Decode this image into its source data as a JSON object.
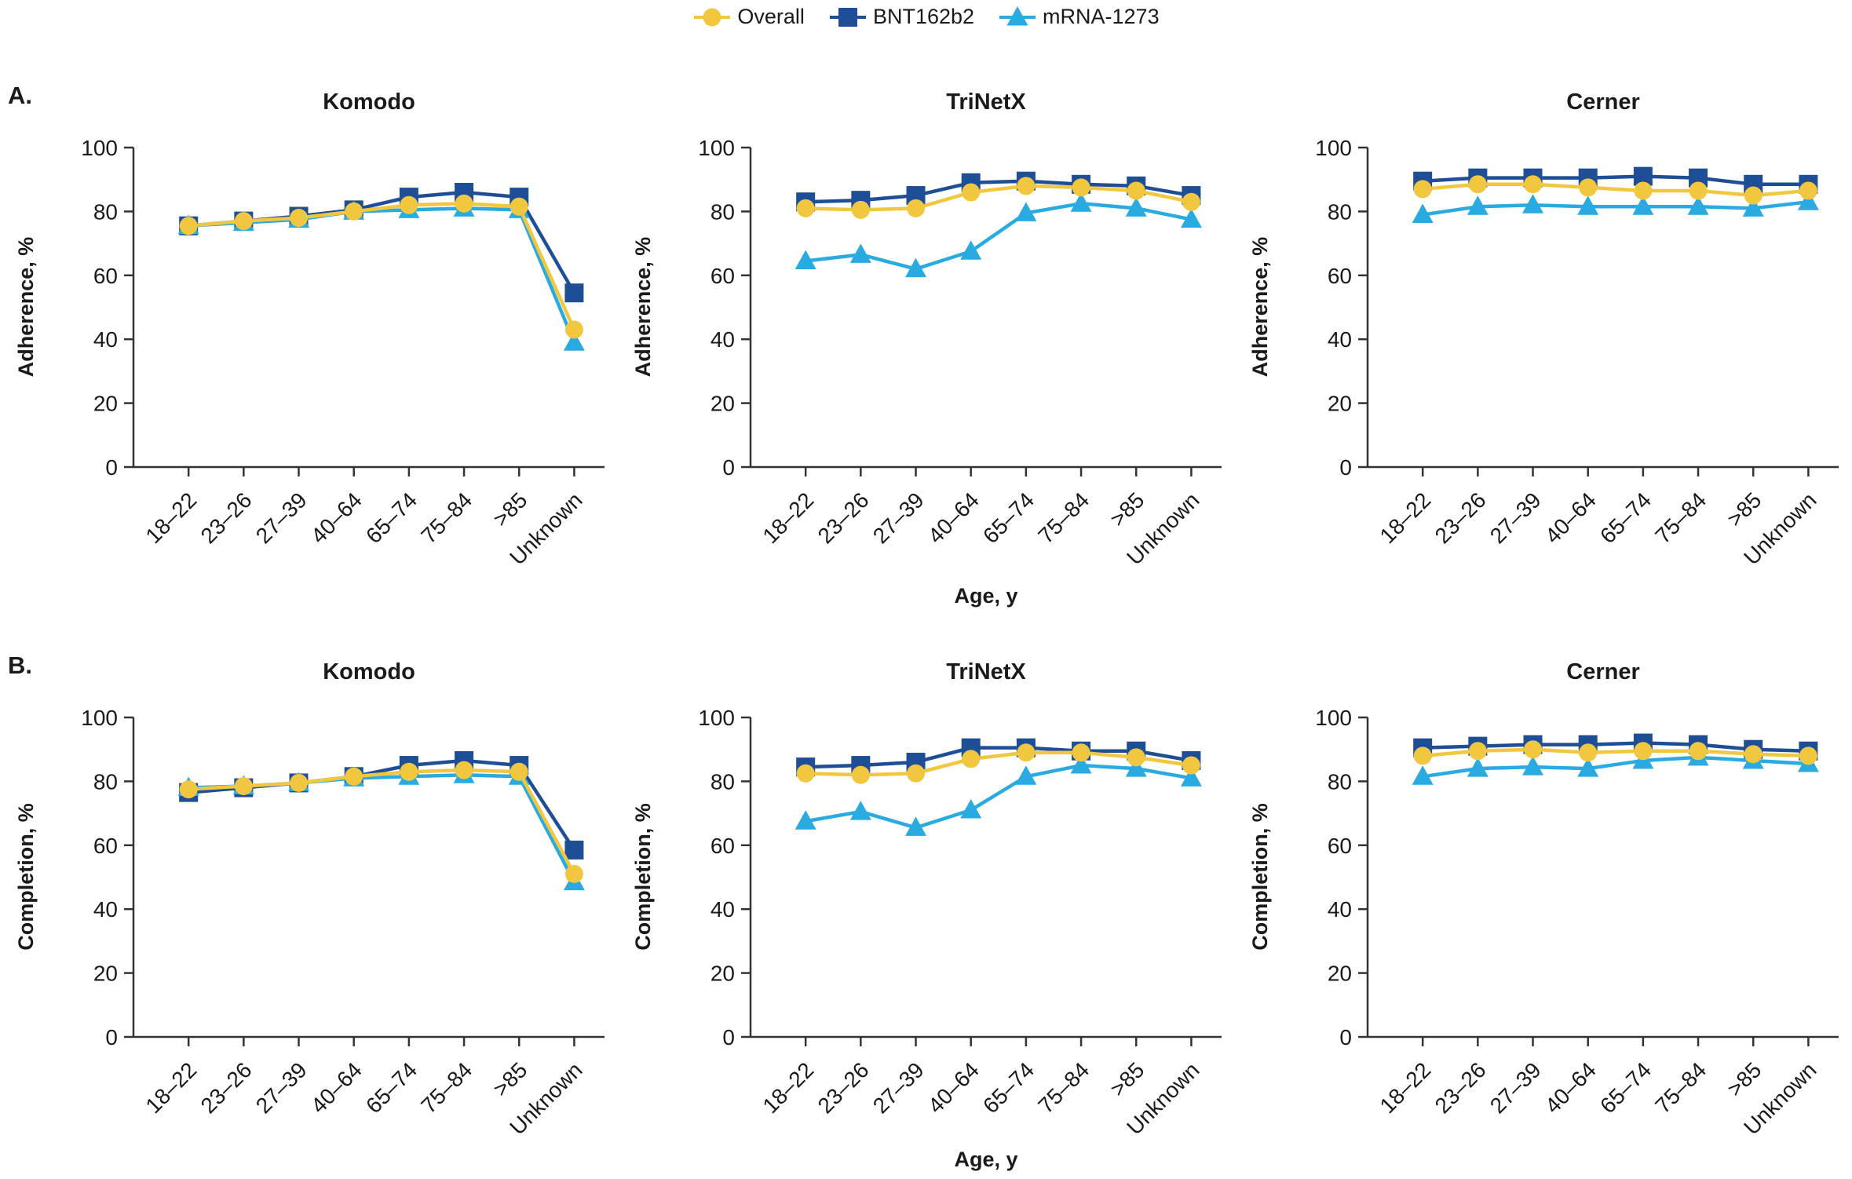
{
  "figure": {
    "panel_a_label": "A.",
    "panel_b_label": "B.",
    "x_axis_label": "Age, y",
    "y_ticks": [
      0,
      20,
      40,
      60,
      80,
      100
    ],
    "categories": [
      "18–22",
      "23–26",
      "27–39",
      "40–64",
      "65–74",
      "75–84",
      ">85",
      "Unknown"
    ],
    "colors": {
      "overall": "#F2C740",
      "bnt162b2": "#1E4F96",
      "mrna1273": "#29ABE2",
      "axis": "#333333",
      "text": "#1a1a1a"
    }
  },
  "legend": [
    {
      "label": "Overall",
      "marker": "circle",
      "color": "#F2C740"
    },
    {
      "label": "BNT162b2",
      "marker": "square",
      "color": "#1E4F96"
    },
    {
      "label": "mRNA-1273",
      "marker": "triangle",
      "color": "#29ABE2"
    }
  ],
  "chart_data": [
    {
      "id": "adherence-komodo",
      "type": "line",
      "panel": "A",
      "title": "Komodo",
      "ylabel": "Adherence, %",
      "xlabel": "Age, y",
      "ylim": [
        0,
        100
      ],
      "y_ticks": [
        0,
        20,
        40,
        60,
        80,
        100
      ],
      "grid": false,
      "categories": [
        "18–22",
        "23–26",
        "27–39",
        "40–64",
        "65–74",
        "75–84",
        ">85",
        "Unknown"
      ],
      "series": [
        {
          "name": "BNT162b2",
          "marker": "square",
          "color": "#1E4F96",
          "values": [
            75.5,
            77,
            78.5,
            80.5,
            84.5,
            86,
            84.5,
            54.5
          ]
        },
        {
          "name": "mRNA-1273",
          "marker": "triangle",
          "color": "#29ABE2",
          "values": [
            75.5,
            76.5,
            77.5,
            80,
            80.5,
            81,
            80.5,
            39
          ]
        },
        {
          "name": "Overall",
          "marker": "circle",
          "color": "#F2C740",
          "values": [
            75.5,
            77,
            78,
            80,
            82,
            82.5,
            81.5,
            43
          ]
        }
      ]
    },
    {
      "id": "adherence-trinetx",
      "type": "line",
      "panel": "A",
      "title": "TriNetX",
      "ylabel": "Adherence, %",
      "xlabel": "Age, y",
      "ylim": [
        0,
        100
      ],
      "y_ticks": [
        0,
        20,
        40,
        60,
        80,
        100
      ],
      "grid": false,
      "categories": [
        "18–22",
        "23–26",
        "27–39",
        "40–64",
        "65–74",
        "75–84",
        ">85",
        "Unknown"
      ],
      "series": [
        {
          "name": "BNT162b2",
          "marker": "square",
          "color": "#1E4F96",
          "values": [
            83,
            83.5,
            85,
            89,
            89.5,
            88.5,
            88,
            85
          ]
        },
        {
          "name": "mRNA-1273",
          "marker": "triangle",
          "color": "#29ABE2",
          "values": [
            64.5,
            66.5,
            62,
            67.5,
            79.5,
            82.5,
            81,
            77.5
          ]
        },
        {
          "name": "Overall",
          "marker": "circle",
          "color": "#F2C740",
          "values": [
            81,
            80.5,
            81,
            86,
            88,
            87.5,
            86.5,
            83
          ]
        }
      ]
    },
    {
      "id": "adherence-cerner",
      "type": "line",
      "panel": "A",
      "title": "Cerner",
      "ylabel": "Adherence, %",
      "xlabel": "Age, y",
      "ylim": [
        0,
        100
      ],
      "y_ticks": [
        0,
        20,
        40,
        60,
        80,
        100
      ],
      "grid": false,
      "categories": [
        "18–22",
        "23–26",
        "27–39",
        "40–64",
        "65–74",
        "75–84",
        ">85",
        "Unknown"
      ],
      "series": [
        {
          "name": "BNT162b2",
          "marker": "square",
          "color": "#1E4F96",
          "values": [
            89.5,
            90.5,
            90.5,
            90.5,
            91,
            90.5,
            88.5,
            88.5
          ]
        },
        {
          "name": "mRNA-1273",
          "marker": "triangle",
          "color": "#29ABE2",
          "values": [
            79,
            81.5,
            82,
            81.5,
            81.5,
            81.5,
            81,
            83
          ]
        },
        {
          "name": "Overall",
          "marker": "circle",
          "color": "#F2C740",
          "values": [
            87,
            88.5,
            88.5,
            87.5,
            86.5,
            86.5,
            85,
            86.5
          ]
        }
      ]
    },
    {
      "id": "completion-komodo",
      "type": "line",
      "panel": "B",
      "title": "Komodo",
      "ylabel": "Completion, %",
      "xlabel": "Age, y",
      "ylim": [
        0,
        100
      ],
      "y_ticks": [
        0,
        20,
        40,
        60,
        80,
        100
      ],
      "grid": false,
      "categories": [
        "18–22",
        "23–26",
        "27–39",
        "40–64",
        "65–74",
        "75–84",
        ">85",
        "Unknown"
      ],
      "series": [
        {
          "name": "BNT162b2",
          "marker": "square",
          "color": "#1E4F96",
          "values": [
            76.5,
            78,
            79.5,
            81.5,
            85,
            86.5,
            85,
            58.5
          ]
        },
        {
          "name": "mRNA-1273",
          "marker": "triangle",
          "color": "#29ABE2",
          "values": [
            78,
            78.5,
            79.5,
            81,
            81.5,
            82,
            81.5,
            48.5
          ]
        },
        {
          "name": "Overall",
          "marker": "circle",
          "color": "#F2C740",
          "values": [
            77.5,
            78.5,
            79.5,
            81.5,
            83,
            83.5,
            83,
            51
          ]
        }
      ]
    },
    {
      "id": "completion-trinetx",
      "type": "line",
      "panel": "B",
      "title": "TriNetX",
      "ylabel": "Completion, %",
      "xlabel": "Age, y",
      "ylim": [
        0,
        100
      ],
      "y_ticks": [
        0,
        20,
        40,
        60,
        80,
        100
      ],
      "grid": false,
      "categories": [
        "18–22",
        "23–26",
        "27–39",
        "40–64",
        "65–74",
        "75–84",
        ">85",
        "Unknown"
      ],
      "series": [
        {
          "name": "BNT162b2",
          "marker": "square",
          "color": "#1E4F96",
          "values": [
            84.5,
            85,
            86,
            90.5,
            90.5,
            89.5,
            89.5,
            86.5
          ]
        },
        {
          "name": "mRNA-1273",
          "marker": "triangle",
          "color": "#29ABE2",
          "values": [
            67.5,
            70.5,
            65.5,
            71,
            81.5,
            85,
            84,
            81
          ]
        },
        {
          "name": "Overall",
          "marker": "circle",
          "color": "#F2C740",
          "values": [
            82.5,
            82,
            82.5,
            87,
            89,
            89,
            87.5,
            85
          ]
        }
      ]
    },
    {
      "id": "completion-cerner",
      "type": "line",
      "panel": "B",
      "title": "Cerner",
      "ylabel": "Completion, %",
      "xlabel": "Age, y",
      "ylim": [
        0,
        100
      ],
      "y_ticks": [
        0,
        20,
        40,
        60,
        80,
        100
      ],
      "grid": false,
      "categories": [
        "18–22",
        "23–26",
        "27–39",
        "40–64",
        "65–74",
        "75–84",
        ">85",
        "Unknown"
      ],
      "series": [
        {
          "name": "BNT162b2",
          "marker": "square",
          "color": "#1E4F96",
          "values": [
            90.5,
            91,
            91.5,
            91.5,
            92,
            91.5,
            90,
            89.5
          ]
        },
        {
          "name": "mRNA-1273",
          "marker": "triangle",
          "color": "#29ABE2",
          "values": [
            81.5,
            84,
            84.5,
            84,
            86.5,
            87.5,
            86.5,
            85.5
          ]
        },
        {
          "name": "Overall",
          "marker": "circle",
          "color": "#F2C740",
          "values": [
            88,
            89.5,
            90,
            89,
            89.5,
            89.5,
            88.5,
            88
          ]
        }
      ]
    }
  ]
}
